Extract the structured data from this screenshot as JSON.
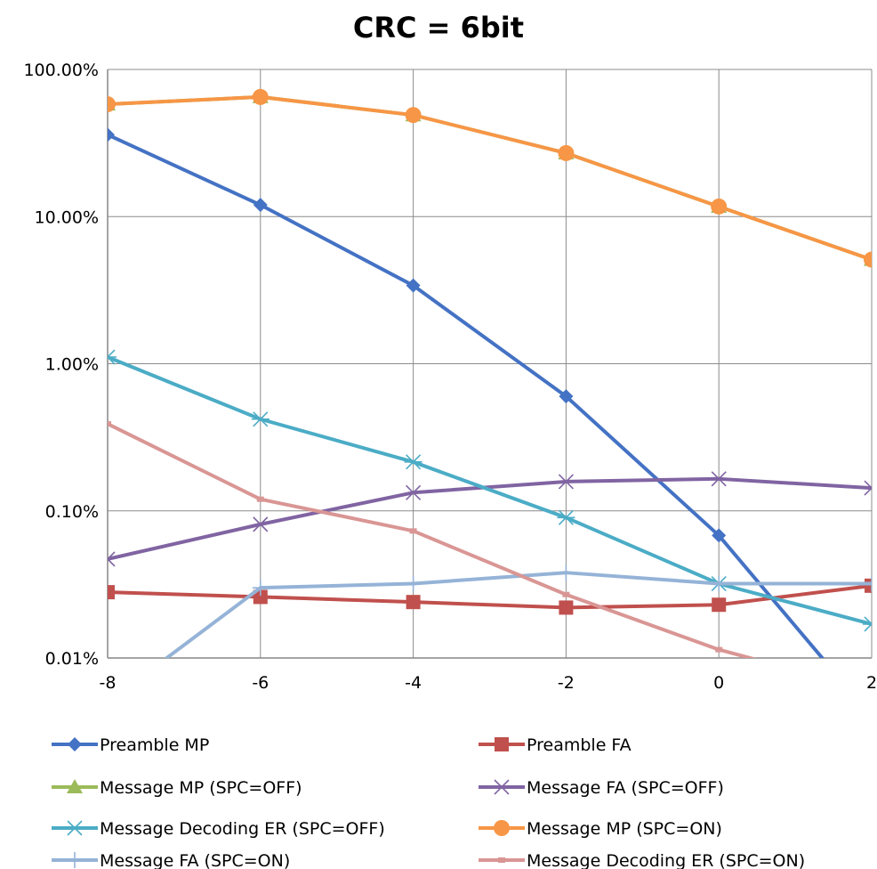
{
  "chart_data": {
    "type": "line",
    "title": "CRC = 6bit",
    "xlabel": "",
    "ylabel": "",
    "y_scale": "log",
    "x": [
      -8,
      -6,
      -4,
      -2,
      0,
      2
    ],
    "x_ticks": [
      "-8",
      "-6",
      "-4",
      "-2",
      "0",
      "2"
    ],
    "ylim": [
      0.0001,
      1
    ],
    "y_ticks": [
      {
        "value": 1,
        "label": "100.00%"
      },
      {
        "value": 0.1,
        "label": "10.00%"
      },
      {
        "value": 0.01,
        "label": "1.00%"
      },
      {
        "value": 0.001,
        "label": "0.10%"
      },
      {
        "value": 0.0001,
        "label": "0.01%"
      }
    ],
    "grid": true,
    "legend_position": "bottom",
    "series": [
      {
        "name": "Preamble MP",
        "color": "#4472C4",
        "marker": "diamond",
        "values": [
          0.36,
          0.12,
          0.034,
          0.006,
          0.00068,
          4e-05
        ]
      },
      {
        "name": "Preamble FA",
        "color": "#C0504D",
        "marker": "square",
        "values": [
          0.00028,
          0.00026,
          0.00024,
          0.00022,
          0.00023,
          0.00031
        ]
      },
      {
        "name": "Message MP (SPC=OFF)",
        "color": "#9BBB59",
        "marker": "triangle",
        "values": [
          0.58,
          0.65,
          0.49,
          0.27,
          0.117,
          0.051
        ]
      },
      {
        "name": "Message FA (SPC=OFF)",
        "color": "#8064A2",
        "marker": "x",
        "values": [
          0.00047,
          0.00081,
          0.00133,
          0.00158,
          0.00165,
          0.00143
        ]
      },
      {
        "name": "Message Decoding ER (SPC=OFF)",
        "color": "#4BACC6",
        "marker": "star",
        "values": [
          0.0111,
          0.0042,
          0.00215,
          0.0009,
          0.00032,
          0.00017
        ]
      },
      {
        "name": "Message MP (SPC=ON)",
        "color": "#F79646",
        "marker": "circle",
        "values": [
          0.58,
          0.65,
          0.49,
          0.27,
          0.117,
          0.051
        ]
      },
      {
        "name": "Message FA (SPC=ON)",
        "color": "#95B3D7",
        "marker": "plus",
        "values": [
          5e-05,
          0.0003,
          0.00032,
          0.00038,
          0.00032,
          0.00032
        ]
      },
      {
        "name": "Message Decoding ER (SPC=ON)",
        "color": "#D99694",
        "marker": "dash",
        "values": [
          0.0039,
          0.0012,
          0.00073,
          0.00027,
          0.000114,
          6e-05
        ]
      }
    ]
  }
}
